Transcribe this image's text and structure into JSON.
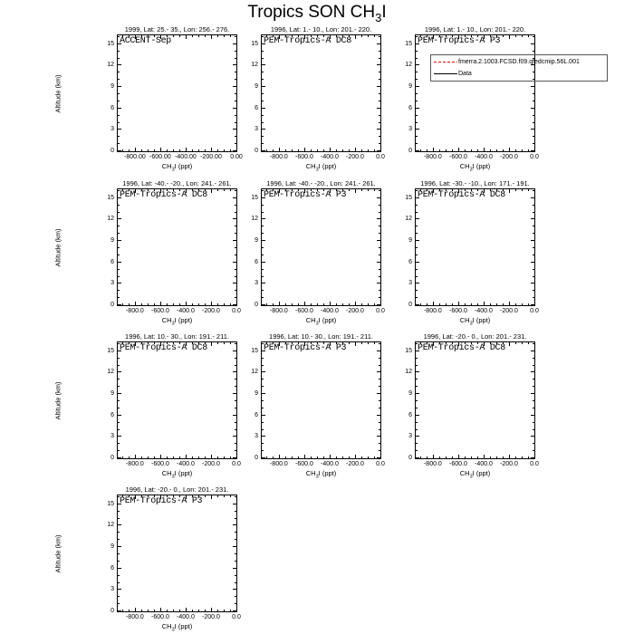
{
  "title": {
    "prefix": "Tropics SON CH",
    "sub": "3",
    "suffix": "I"
  },
  "axes": {
    "ylabel": "Altitude (km)",
    "xlabel_prefix": "CH",
    "xlabel_sub": "3",
    "xlabel_suffix": "I (ppt)",
    "yticks": [
      "15",
      "12",
      "9",
      "6",
      "3",
      "0"
    ],
    "xticks_2dp": [
      "-800.00",
      "-600.00",
      "-400.00",
      "-200.00",
      "0.00"
    ],
    "xticks_1dp": [
      "-800.0",
      "-600.0",
      "-400.0",
      "-200.0",
      "0.0"
    ]
  },
  "legend": {
    "entries": [
      {
        "label": "fmerra.2.1003.FCSD.f09.qfedcmip.56L.001",
        "color": "#ff0000",
        "style": "dashed"
      },
      {
        "label": "Data",
        "color": "#000000",
        "style": "solid"
      }
    ]
  },
  "panels": [
    {
      "row": 0,
      "col": 0,
      "title": "1999, Lat: 25.- 35., Lon: 256.- 276.",
      "label": "ACCENT-Sep",
      "xtick_format": "2dp",
      "has_ylabel": true,
      "has_legend": false
    },
    {
      "row": 0,
      "col": 1,
      "title": "1996, Lat: 1.- 10., Lon: 201.- 220.",
      "label": "PEM-Tropics-A DC8",
      "xtick_format": "1dp",
      "has_ylabel": false,
      "has_legend": false
    },
    {
      "row": 0,
      "col": 2,
      "title": "1996, Lat: 1.- 10., Lon: 201.- 220.",
      "label": "PEM-Tropics-A P3",
      "xtick_format": "1dp",
      "has_ylabel": false,
      "has_legend": true
    },
    {
      "row": 1,
      "col": 0,
      "title": "1996, Lat: -40.- -20., Lon: 241.- 261.",
      "label": "PEM-Tropics-A DC8",
      "xtick_format": "1dp",
      "has_ylabel": true,
      "has_legend": false
    },
    {
      "row": 1,
      "col": 1,
      "title": "1996, Lat: -40.- -20., Lon: 241.- 261.",
      "label": "PEM-Tropics-A P3",
      "xtick_format": "1dp",
      "has_ylabel": false,
      "has_legend": false
    },
    {
      "row": 1,
      "col": 2,
      "title": "1996, Lat: -30.- -10., Lon: 171.- 191.",
      "label": "PEM-Tropics-A DC8",
      "xtick_format": "1dp",
      "has_ylabel": false,
      "has_legend": false
    },
    {
      "row": 2,
      "col": 0,
      "title": "1996, Lat: 10.- 30., Lon: 191.- 211.",
      "label": "PEM-Tropics-A DC8",
      "xtick_format": "1dp",
      "has_ylabel": true,
      "has_legend": false
    },
    {
      "row": 2,
      "col": 1,
      "title": "1996, Lat: 10.- 30., Lon: 191.- 211.",
      "label": "PEM-Tropics-A P3",
      "xtick_format": "1dp",
      "has_ylabel": false,
      "has_legend": false
    },
    {
      "row": 2,
      "col": 2,
      "title": "1996, Lat: -20.- 0., Lon: 201.- 231.",
      "label": "PEM-Tropics-A DC8",
      "xtick_format": "1dp",
      "has_ylabel": false,
      "has_legend": false
    },
    {
      "row": 3,
      "col": 0,
      "title": "1996, Lat: -20.- 0., Lon: 201.- 231.",
      "label": "PEM-Tropics-A P3",
      "xtick_format": "1dp",
      "has_ylabel": true,
      "has_legend": false
    }
  ],
  "chart_data": {
    "type": "line",
    "title": "Tropics SON CH3I",
    "layout": "small multiples: 4 rows x 3 cols, 10 panels total (last row has 1 panel)",
    "xlabel": "CH3I (ppt)",
    "ylabel": "Altitude (km)",
    "xlim": [
      -935,
      0
    ],
    "ylim": [
      0,
      16.25
    ],
    "xticks": [
      -800,
      -600,
      -400,
      -200,
      0
    ],
    "yticks": [
      0,
      3,
      6,
      9,
      12,
      15
    ],
    "grid": false,
    "legend_entries": [
      "fmerra.2.1003.FCSD.f09.qfedcmip.56L.001",
      "Data"
    ],
    "legend_position": "inside top-right panel (row 1, col 3)",
    "panels": [
      {
        "title": "1999, Lat: 25.- 35., Lon: 256.- 276.",
        "label": "ACCENT-Sep"
      },
      {
        "title": "1996, Lat: 1.- 10., Lon: 201.- 220.",
        "label": "PEM-Tropics-A DC8"
      },
      {
        "title": "1996, Lat: 1.- 10., Lon: 201.- 220.",
        "label": "PEM-Tropics-A P3"
      },
      {
        "title": "1996, Lat: -40.- -20., Lon: 241.- 261.",
        "label": "PEM-Tropics-A DC8"
      },
      {
        "title": "1996, Lat: -40.- -20., Lon: 241.- 261.",
        "label": "PEM-Tropics-A P3"
      },
      {
        "title": "1996, Lat: -30.- -10., Lon: 171.- 191.",
        "label": "PEM-Tropics-A DC8"
      },
      {
        "title": "1996, Lat: 10.- 30., Lon: 191.- 211.",
        "label": "PEM-Tropics-A DC8"
      },
      {
        "title": "1996, Lat: 10.- 30., Lon: 191.- 211.",
        "label": "PEM-Tropics-A P3"
      },
      {
        "title": "1996, Lat: -20.- 0., Lon: 201.- 231.",
        "label": "PEM-Tropics-A DC8"
      },
      {
        "title": "1996, Lat: -20.- 0., Lon: 201.- 231.",
        "label": "PEM-Tropics-A P3"
      }
    ],
    "series": [
      {
        "name": "fmerra.2.1003.FCSD.f09.qfedcmip.56L.001",
        "values": []
      },
      {
        "name": "Data",
        "values": []
      }
    ],
    "note": "All 10 panels show empty axes boxes; no data curves are visible inside any panel."
  }
}
